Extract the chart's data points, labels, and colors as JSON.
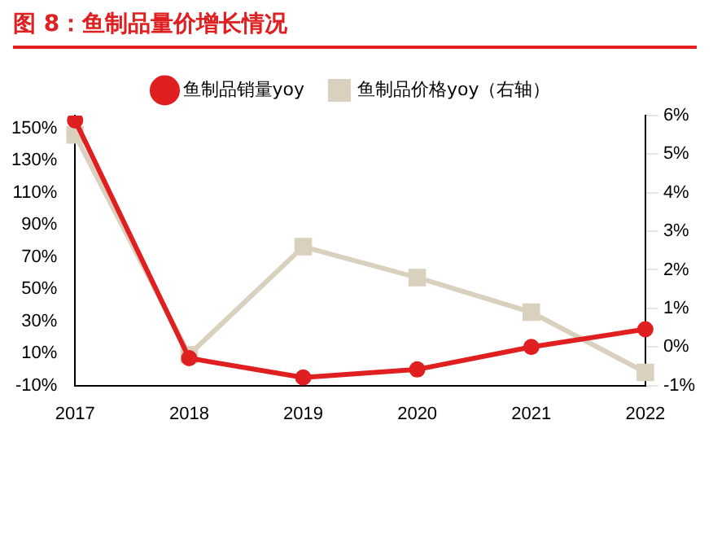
{
  "chart_data": {
    "type": "line",
    "title": "图 8：鱼制品量价增长情况",
    "categories": [
      "2017",
      "2018",
      "2019",
      "2020",
      "2021",
      "2022"
    ],
    "series": [
      {
        "name": "鱼制品销量yoy",
        "color": "#e02020",
        "marker": "circle",
        "values": [
          155,
          7,
          -5,
          0,
          14,
          25
        ]
      },
      {
        "name": "鱼制品价格yoy（右轴）",
        "color": "#d9d0bd",
        "marker": "square",
        "axis": "y2",
        "values": [
          5.5,
          -0.2,
          2.6,
          1.8,
          0.9,
          -0.66
        ]
      }
    ],
    "ylim": [
      -10,
      158
    ],
    "yticks": [
      {
        "value": -10,
        "label": "-10%"
      },
      {
        "value": 10,
        "label": "10%"
      },
      {
        "value": 30,
        "label": "30%"
      },
      {
        "value": 50,
        "label": "50%"
      },
      {
        "value": 70,
        "label": "70%"
      },
      {
        "value": 90,
        "label": "90%"
      },
      {
        "value": 110,
        "label": "110%"
      },
      {
        "value": 130,
        "label": "130%"
      },
      {
        "value": 150,
        "label": "150%"
      }
    ],
    "y2lim": [
      -1,
      6
    ],
    "y2ticks": [
      {
        "value": -1,
        "label": "-1%"
      },
      {
        "value": 0,
        "label": "0%"
      },
      {
        "value": 1,
        "label": "1%"
      },
      {
        "value": 2,
        "label": "2%"
      },
      {
        "value": 3,
        "label": "3%"
      },
      {
        "value": 4,
        "label": "4%"
      },
      {
        "value": 5,
        "label": "5%"
      },
      {
        "value": 6,
        "label": "6%"
      }
    ],
    "grid": false,
    "legend": "top"
  }
}
